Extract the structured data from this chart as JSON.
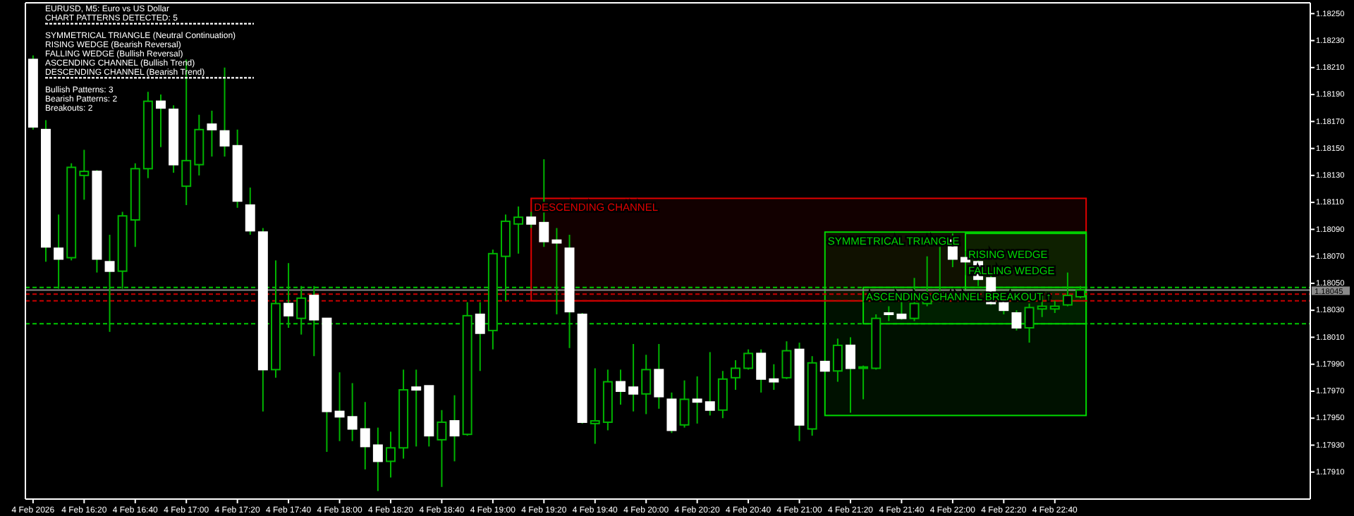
{
  "chart_data": {
    "type": "candlestick",
    "title": "EURUSD, M5: Euro vs US Dollar",
    "subtitle": "CHART PATTERNS DETECTED: 5",
    "x": [
      "2026-02-04T16:00",
      "2026-02-04T16:05",
      "2026-02-04T16:10",
      "2026-02-04T16:15",
      "2026-02-04T16:20",
      "2026-02-04T16:25",
      "2026-02-04T16:30",
      "2026-02-04T16:35",
      "2026-02-04T16:40",
      "2026-02-04T16:45",
      "2026-02-04T16:50",
      "2026-02-04T16:55",
      "2026-02-04T17:00",
      "2026-02-04T17:05",
      "2026-02-04T17:10",
      "2026-02-04T17:15",
      "2026-02-04T17:20",
      "2026-02-04T17:25",
      "2026-02-04T17:30",
      "2026-02-04T17:35",
      "2026-02-04T17:40",
      "2026-02-04T17:45",
      "2026-02-04T17:50",
      "2026-02-04T17:55",
      "2026-02-04T18:00",
      "2026-02-04T18:05",
      "2026-02-04T18:10",
      "2026-02-04T18:15",
      "2026-02-04T18:20",
      "2026-02-04T18:25",
      "2026-02-04T18:30",
      "2026-02-04T18:35",
      "2026-02-04T18:40",
      "2026-02-04T18:45",
      "2026-02-04T18:50",
      "2026-02-04T18:55",
      "2026-02-04T19:00",
      "2026-02-04T19:05",
      "2026-02-04T19:10",
      "2026-02-04T19:15",
      "2026-02-04T19:20",
      "2026-02-04T19:25",
      "2026-02-04T19:30",
      "2026-02-04T19:35",
      "2026-02-04T19:40",
      "2026-02-04T19:45",
      "2026-02-04T19:50",
      "2026-02-04T19:55",
      "2026-02-04T20:00",
      "2026-02-04T20:05",
      "2026-02-04T20:10",
      "2026-02-04T20:15",
      "2026-02-04T20:20",
      "2026-02-04T20:25",
      "2026-02-04T20:30",
      "2026-02-04T20:35",
      "2026-02-04T20:40",
      "2026-02-04T20:45",
      "2026-02-04T20:50",
      "2026-02-04T20:55",
      "2026-02-04T21:00",
      "2026-02-04T21:05",
      "2026-02-04T21:10",
      "2026-02-04T21:15",
      "2026-02-04T21:20",
      "2026-02-04T21:25",
      "2026-02-04T21:30",
      "2026-02-04T21:35",
      "2026-02-04T21:40",
      "2026-02-04T21:45",
      "2026-02-04T21:50",
      "2026-02-04T21:55",
      "2026-02-04T22:00",
      "2026-02-04T22:05",
      "2026-02-04T22:10",
      "2026-02-04T22:15",
      "2026-02-04T22:20",
      "2026-02-04T22:25",
      "2026-02-04T22:30",
      "2026-02-04T22:35",
      "2026-02-04T22:40",
      "2026-02-04T22:45",
      "2026-02-04T22:50"
    ],
    "ohlc": [
      [
        1.18216,
        1.18219,
        1.18164,
        1.18166
      ],
      [
        1.18164,
        1.18171,
        1.18066,
        1.18077
      ],
      [
        1.18076,
        1.18101,
        1.18046,
        1.18068
      ],
      [
        1.18069,
        1.18139,
        1.18067,
        1.18136
      ],
      [
        1.1813,
        1.18149,
        1.18112,
        1.18133
      ],
      [
        1.18133,
        1.18134,
        1.18058,
        1.18068
      ],
      [
        1.18066,
        1.18086,
        1.18014,
        1.18059
      ],
      [
        1.18059,
        1.18103,
        1.18046,
        1.181
      ],
      [
        1.18097,
        1.18139,
        1.18077,
        1.18135
      ],
      [
        1.18135,
        1.18192,
        1.18128,
        1.18185
      ],
      [
        1.18185,
        1.1819,
        1.18151,
        1.1818
      ],
      [
        1.18179,
        1.18182,
        1.18132,
        1.18138
      ],
      [
        1.18122,
        1.18216,
        1.18108,
        1.18141
      ],
      [
        1.18138,
        1.18175,
        1.1813,
        1.18164
      ],
      [
        1.18168,
        1.18178,
        1.18144,
        1.18164
      ],
      [
        1.18163,
        1.1821,
        1.18144,
        1.18152
      ],
      [
        1.18152,
        1.18164,
        1.18106,
        1.18111
      ],
      [
        1.18108,
        1.18121,
        1.18086,
        1.18089
      ],
      [
        1.18088,
        1.18091,
        1.17955,
        1.17986
      ],
      [
        1.17986,
        1.18067,
        1.1798,
        1.18035
      ],
      [
        1.18035,
        1.18065,
        1.18017,
        1.18026
      ],
      [
        1.18024,
        1.18048,
        1.18012,
        1.18039
      ],
      [
        1.18041,
        1.18048,
        1.17996,
        1.18023
      ],
      [
        1.18024,
        1.18024,
        1.17925,
        1.17955
      ],
      [
        1.17955,
        1.17984,
        1.17933,
        1.17951
      ],
      [
        1.17951,
        1.17976,
        1.17933,
        1.17942
      ],
      [
        1.17942,
        1.17962,
        1.17912,
        1.17929
      ],
      [
        1.1793,
        1.17943,
        1.17896,
        1.17918
      ],
      [
        1.17918,
        1.1794,
        1.17906,
        1.17928
      ],
      [
        1.17928,
        1.17986,
        1.1792,
        1.17971
      ],
      [
        1.17973,
        1.17986,
        1.17929,
        1.17971
      ],
      [
        1.17974,
        1.17974,
        1.17929,
        1.17937
      ],
      [
        1.17934,
        1.17956,
        1.17899,
        1.17947
      ],
      [
        1.17948,
        1.17967,
        1.17918,
        1.17937
      ],
      [
        1.17938,
        1.18036,
        1.17937,
        1.18026
      ],
      [
        1.18027,
        1.18036,
        1.17985,
        1.18013
      ],
      [
        1.18015,
        1.18075,
        1.18001,
        1.18072
      ],
      [
        1.1807,
        1.18101,
        1.18037,
        1.18096
      ],
      [
        1.18094,
        1.18107,
        1.18072,
        1.18099
      ],
      [
        1.18099,
        1.18103,
        1.18091,
        1.18094
      ],
      [
        1.18095,
        1.18142,
        1.18077,
        1.18081
      ],
      [
        1.18082,
        1.18091,
        1.18027,
        1.1808
      ],
      [
        1.18076,
        1.18086,
        1.18002,
        1.18029
      ],
      [
        1.18027,
        1.18028,
        1.17946,
        1.17947
      ],
      [
        1.17946,
        1.17987,
        1.17931,
        1.17948
      ],
      [
        1.17947,
        1.17986,
        1.17941,
        1.17977
      ],
      [
        1.17977,
        1.17986,
        1.1796,
        1.1797
      ],
      [
        1.17973,
        1.18005,
        1.17955,
        1.17968
      ],
      [
        1.17968,
        1.17997,
        1.17953,
        1.17986
      ],
      [
        1.17986,
        1.18005,
        1.17957,
        1.17966
      ],
      [
        1.17964,
        1.17969,
        1.17939,
        1.17941
      ],
      [
        1.17945,
        1.17978,
        1.17943,
        1.17964
      ],
      [
        1.17964,
        1.17981,
        1.17946,
        1.17962
      ],
      [
        1.17962,
        1.17999,
        1.17952,
        1.17956
      ],
      [
        1.17956,
        1.17985,
        1.1795,
        1.17979
      ],
      [
        1.1798,
        1.17993,
        1.17971,
        1.17987
      ],
      [
        1.17987,
        1.18001,
        1.17986,
        1.17998
      ],
      [
        1.17998,
        1.18001,
        1.17969,
        1.17979
      ],
      [
        1.17979,
        1.1799,
        1.17971,
        1.17977
      ],
      [
        1.1798,
        1.18007,
        1.17979,
        1.18
      ],
      [
        1.18001,
        1.18006,
        1.17933,
        1.17945
      ],
      [
        1.17942,
        1.17996,
        1.17937,
        1.17991
      ],
      [
        1.17992,
        1.17993,
        1.17984,
        1.17985
      ],
      [
        1.17985,
        1.18009,
        1.17977,
        1.18004
      ],
      [
        1.18004,
        1.1801,
        1.17954,
        1.17987
      ],
      [
        1.17987,
        1.17989,
        1.17964,
        1.17988
      ],
      [
        1.17987,
        1.18027,
        1.17986,
        1.18024
      ],
      [
        1.18028,
        1.18033,
        1.18022,
        1.18027
      ],
      [
        1.18027,
        1.18037,
        1.18023,
        1.18024
      ],
      [
        1.18024,
        1.18054,
        1.18022,
        1.18035
      ],
      [
        1.18035,
        1.1807,
        1.18033,
        1.18041
      ],
      [
        1.18039,
        1.18077,
        1.18036,
        1.18043
      ],
      [
        1.18082,
        1.18087,
        1.18062,
        1.18068
      ],
      [
        1.18069,
        1.18074,
        1.18056,
        1.18066
      ],
      [
        1.18066,
        1.18067,
        1.18048,
        1.18053
      ],
      [
        1.18054,
        1.18058,
        1.18034,
        1.18035
      ],
      [
        1.18036,
        1.18039,
        1.18027,
        1.1803
      ],
      [
        1.18028,
        1.1803,
        1.18015,
        1.18017
      ],
      [
        1.18017,
        1.18035,
        1.18006,
        1.18032
      ],
      [
        1.18031,
        1.18043,
        1.18025,
        1.18033
      ],
      [
        1.18031,
        1.18037,
        1.18028,
        1.18033
      ],
      [
        1.18034,
        1.18058,
        1.18033,
        1.18041
      ],
      [
        1.1804,
        1.18048,
        1.18039,
        1.18045
      ]
    ],
    "colors": [
      "#ffffff",
      "#ffffff",
      "#ffffff",
      "#00b400",
      "#00b400",
      "#ffffff",
      "#ffffff",
      "#00b400",
      "#00b400",
      "#00b400",
      "#ffffff",
      "#ffffff",
      "#00b400",
      "#00b400",
      "#ffffff",
      "#ffffff",
      "#ffffff",
      "#ffffff",
      "#ffffff",
      "#00b400",
      "#ffffff",
      "#00b400",
      "#ffffff",
      "#ffffff",
      "#ffffff",
      "#ffffff",
      "#ffffff",
      "#ffffff",
      "#00b400",
      "#00b400",
      "#ffffff",
      "#ffffff",
      "#00b400",
      "#ffffff",
      "#00b400",
      "#ffffff",
      "#00b400",
      "#00b400",
      "#00b400",
      "#ffffff",
      "#ffffff",
      "#ffffff",
      "#ffffff",
      "#ffffff",
      "#00b400",
      "#00b400",
      "#ffffff",
      "#ffffff",
      "#00b400",
      "#ffffff",
      "#ffffff",
      "#00b400",
      "#ffffff",
      "#ffffff",
      "#00b400",
      "#00b400",
      "#00b400",
      "#ffffff",
      "#ffffff",
      "#00b400",
      "#ffffff",
      "#00b400",
      "#ffffff",
      "#00b400",
      "#ffffff",
      "#00b400",
      "#00b400",
      "#ffffff",
      "#ffffff",
      "#00b400",
      "#00b400",
      "#00b400",
      "#ffffff",
      "#ffffff",
      "#ffffff",
      "#ffffff",
      "#ffffff",
      "#ffffff",
      "#00b400",
      "#00b400",
      "#00b400",
      "#00b400",
      "#00b400"
    ],
    "xlim": [
      "2026-02-04T15:57",
      "2026-02-05T00:20"
    ],
    "xticks": [
      {
        "value": "2026-02-04T16:00",
        "label": "4 Feb 2026"
      },
      {
        "value": "2026-02-04T16:20",
        "label": "4 Feb 16:20"
      },
      {
        "value": "2026-02-04T16:40",
        "label": "4 Feb 16:40"
      },
      {
        "value": "2026-02-04T17:00",
        "label": "4 Feb 17:00"
      },
      {
        "value": "2026-02-04T17:20",
        "label": "4 Feb 17:20"
      },
      {
        "value": "2026-02-04T17:40",
        "label": "4 Feb 17:40"
      },
      {
        "value": "2026-02-04T18:00",
        "label": "4 Feb 18:00"
      },
      {
        "value": "2026-02-04T18:20",
        "label": "4 Feb 18:20"
      },
      {
        "value": "2026-02-04T18:40",
        "label": "4 Feb 18:40"
      },
      {
        "value": "2026-02-04T19:00",
        "label": "4 Feb 19:00"
      },
      {
        "value": "2026-02-04T19:20",
        "label": "4 Feb 19:20"
      },
      {
        "value": "2026-02-04T19:40",
        "label": "4 Feb 19:40"
      },
      {
        "value": "2026-02-04T20:00",
        "label": "4 Feb 20:00"
      },
      {
        "value": "2026-02-04T20:20",
        "label": "4 Feb 20:20"
      },
      {
        "value": "2026-02-04T20:40",
        "label": "4 Feb 20:40"
      },
      {
        "value": "2026-02-04T21:00",
        "label": "4 Feb 21:00"
      },
      {
        "value": "2026-02-04T21:20",
        "label": "4 Feb 21:20"
      },
      {
        "value": "2026-02-04T21:40",
        "label": "4 Feb 21:40"
      },
      {
        "value": "2026-02-04T22:00",
        "label": "4 Feb 22:00"
      },
      {
        "value": "2026-02-04T22:20",
        "label": "4 Feb 22:20"
      },
      {
        "value": "2026-02-04T22:40",
        "label": "4 Feb 22:40"
      }
    ],
    "ylim": [
      1.1789,
      1.18258
    ],
    "yticks": [
      {
        "value": 1.1791,
        "label": "1.17910"
      },
      {
        "value": 1.1793,
        "label": "1.17930"
      },
      {
        "value": 1.1795,
        "label": "1.17950"
      },
      {
        "value": 1.1797,
        "label": "1.17970"
      },
      {
        "value": 1.1799,
        "label": "1.17990"
      },
      {
        "value": 1.1801,
        "label": "1.18010"
      },
      {
        "value": 1.1803,
        "label": "1.18030"
      },
      {
        "value": 1.1805,
        "label": "1.18050"
      },
      {
        "value": 1.1807,
        "label": "1.18070"
      },
      {
        "value": 1.1809,
        "label": "1.18090"
      },
      {
        "value": 1.1811,
        "label": "1.18110"
      },
      {
        "value": 1.1813,
        "label": "1.18130"
      },
      {
        "value": 1.1815,
        "label": "1.18150"
      },
      {
        "value": 1.1817,
        "label": "1.18170"
      },
      {
        "value": 1.1819,
        "label": "1.18190"
      },
      {
        "value": 1.1821,
        "label": "1.18210"
      },
      {
        "value": 1.1823,
        "label": "1.18230"
      },
      {
        "value": 1.1825,
        "label": "1.18250"
      }
    ],
    "ref_lines": [
      {
        "axis": "y",
        "value": 1.18045,
        "label": "1.18045",
        "color": "#8a8a8a",
        "line_style": "solid"
      },
      {
        "axis": "y",
        "value": 1.18047,
        "color": "#00c800",
        "line_style": "dashed"
      },
      {
        "axis": "y",
        "value": 1.18042,
        "color": "#c80000",
        "line_style": "dashed"
      },
      {
        "axis": "y",
        "value": 1.18037,
        "color": "#c80000",
        "line_style": "dashed"
      },
      {
        "axis": "y",
        "value": 1.1802,
        "color": "#00c800",
        "line_style": "dashed"
      }
    ],
    "bands": [
      {
        "axis": "y",
        "from": 1.18037,
        "to": 1.18113,
        "color": "#e00000"
      },
      {
        "axis": "y",
        "from": 1.17952,
        "to": 1.18088,
        "color": "#00d800"
      },
      {
        "axis": "y",
        "from": 1.18045,
        "to": 1.18087,
        "color": "#00d800"
      },
      {
        "axis": "y",
        "from": 1.1802,
        "to": 1.18047,
        "color": "#00d800"
      }
    ],
    "annotations": [
      {
        "text": "DESCENDING CHANNEL",
        "x": "2026-02-04T19:15",
        "y": 1.18113
      },
      {
        "text": "SYMMETRICAL TRIANGLE",
        "x": "2026-02-04T21:10",
        "y": 1.18088
      },
      {
        "text": "RISING WEDGE",
        "x": "2026-02-04T22:05",
        "y": 1.18078
      },
      {
        "text": "ASCENDING CHANNEL BREAKOUT ↑",
        "x": "2026-02-04T21:25",
        "y": 1.18047
      },
      {
        "text": "FALLING WEDGE",
        "x": "2026-02-04T22:05",
        "y": 1.18066
      },
      "SYMMETRICAL TRIANGLE (Neutral Continuation)",
      "RISING WEDGE (Bearish Reversal)",
      "FALLING WEDGE (Bullish Reversal)",
      "ASCENDING CHANNEL (Bullish Trend)",
      "DESCENDING CHANNEL (Bearish Trend)",
      "Bullish Patterns: 3",
      "Bearish Patterns: 2",
      "Breakouts: 2"
    ]
  }
}
